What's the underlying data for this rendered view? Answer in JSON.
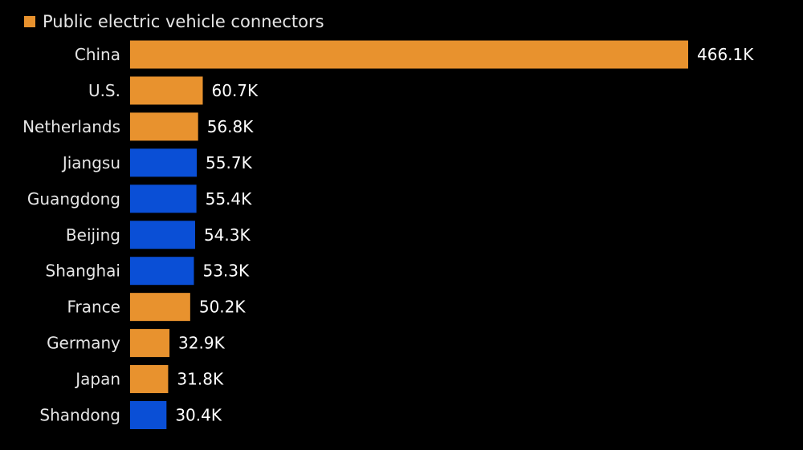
{
  "legend": {
    "label": "Public electric vehicle connectors",
    "color": "#e8922e"
  },
  "colors": {
    "background": "#000000",
    "country": "#e8922e",
    "chinese_province": "#0a4fd6",
    "label_text": "#e6e6e6",
    "value_text": "#ffffff"
  },
  "chart_data": {
    "type": "bar",
    "orientation": "horizontal",
    "title": "",
    "xlabel": "",
    "ylabel": "",
    "legend_position": "top-left",
    "grid": false,
    "xlim": [
      0,
      466.1
    ],
    "categories": [
      "China",
      "U.S.",
      "Netherlands",
      "Jiangsu",
      "Guangdong",
      "Beijing",
      "Shanghai",
      "France",
      "Germany",
      "Japan",
      "Shandong"
    ],
    "values": [
      466.1,
      60.7,
      56.8,
      55.7,
      55.4,
      54.3,
      53.3,
      50.2,
      32.9,
      31.8,
      30.4
    ],
    "value_labels": [
      "466.1K",
      "60.7K",
      "56.8K",
      "55.7K",
      "55.4K",
      "54.3K",
      "53.3K",
      "50.2K",
      "32.9K",
      "31.8K",
      "30.4K"
    ],
    "bar_colors": [
      "#e8922e",
      "#e8922e",
      "#e8922e",
      "#0a4fd6",
      "#0a4fd6",
      "#0a4fd6",
      "#0a4fd6",
      "#e8922e",
      "#e8922e",
      "#e8922e",
      "#0a4fd6"
    ]
  }
}
